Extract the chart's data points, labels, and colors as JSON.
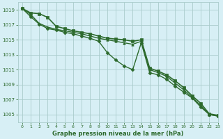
{
  "bg_color": "#d7eff5",
  "grid_color": "#aacccc",
  "line_color": "#2d6a2d",
  "marker_color": "#2d6a2d",
  "xlabel": "Graphe pression niveau de la mer (hPa)",
  "ylim": [
    1004,
    1020
  ],
  "xlim": [
    -0.5,
    23
  ],
  "yticks": [
    1005,
    1007,
    1009,
    1011,
    1013,
    1015,
    1017,
    1019
  ],
  "xticks": [
    0,
    1,
    2,
    3,
    4,
    5,
    6,
    7,
    8,
    9,
    10,
    11,
    12,
    13,
    14,
    15,
    16,
    17,
    18,
    19,
    20,
    21,
    22,
    23
  ],
  "series": [
    [
      1019.2,
      1018.6,
      1018.5,
      1018.0,
      1016.8,
      1016.5,
      1016.2,
      1016.0,
      1015.8,
      1015.5,
      1015.2,
      1015.1,
      1015.0,
      1014.8,
      1015.0,
      1011.2,
      1010.8,
      1010.3,
      1009.5,
      1008.6,
      1007.5,
      1006.5,
      1005.1,
      1004.9
    ],
    [
      1019.2,
      1018.4,
      1017.2,
      1016.7,
      1016.4,
      1016.2,
      1016.0,
      1015.8,
      1015.5,
      1015.2,
      1015.0,
      1014.8,
      1014.6,
      1014.4,
      1014.8,
      1011.0,
      1010.6,
      1010.1,
      1009.2,
      1008.3,
      1007.3,
      1006.2,
      1005.0,
      1004.8
    ],
    [
      1019.2,
      1018.1,
      1017.1,
      1016.5,
      1016.3,
      1016.0,
      1015.8,
      1015.5,
      1015.2,
      1014.8,
      1013.3,
      1012.3,
      1011.5,
      1011.0,
      1014.6,
      1010.6,
      1010.3,
      1009.7,
      1008.8,
      1008.0,
      1007.2,
      1006.0,
      1005.0,
      1004.8
    ]
  ],
  "markers": [
    "s",
    "^",
    "D"
  ],
  "linewidths": [
    1.2,
    1.0,
    1.0
  ],
  "markersizes": [
    2.5,
    2.5,
    2.5
  ],
  "title_fontsize": 6,
  "tick_fontsize": 5
}
